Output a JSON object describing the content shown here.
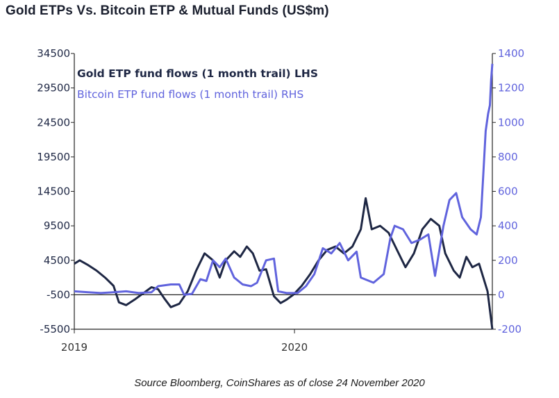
{
  "source_note": "Source Bloomberg, CoinShares as of close 24 November 2020",
  "colors": {
    "gold": "#1e2744",
    "bitcoin": "#6063dd",
    "axis": "#222222"
  },
  "chart_data": {
    "type": "line",
    "title": "Gold ETPs Vs. Bitcoin ETP & Mutual Funds (US$m)",
    "left_axis": {
      "ylim": [
        -5500,
        34500
      ],
      "ticks": [
        -5500,
        -500,
        4500,
        9500,
        14500,
        19500,
        24500,
        29500,
        34500
      ],
      "tick_labels": [
        "-5500",
        "-500",
        "4500",
        "9500",
        "14500",
        "19500",
        "24500",
        "29500",
        "34500"
      ]
    },
    "right_axis": {
      "ylim": [
        -200,
        1400
      ],
      "ticks": [
        -200,
        0,
        200,
        400,
        600,
        800,
        1000,
        1200,
        1400
      ],
      "tick_labels": [
        "-200",
        "0",
        "200",
        "400",
        "600",
        "800",
        "1000",
        "1200",
        "1400"
      ]
    },
    "x_axis": {
      "range": [
        "2019-01-01",
        "2020-11-24"
      ],
      "tick_labels": [
        {
          "label": "2019",
          "date": "2019-01-01"
        },
        {
          "label": "2020",
          "date": "2020-01-01"
        }
      ]
    },
    "legend": {
      "placement": "top-left"
    },
    "series": [
      {
        "name": "Gold ETP fund flows (1 month trail) LHS",
        "axis": "left",
        "points": [
          [
            "2019-01-01",
            4000
          ],
          [
            "2019-01-10",
            4500
          ],
          [
            "2019-01-24",
            3800
          ],
          [
            "2019-02-07",
            3000
          ],
          [
            "2019-02-21",
            2000
          ],
          [
            "2019-03-07",
            800
          ],
          [
            "2019-03-16",
            -1600
          ],
          [
            "2019-03-28",
            -2000
          ],
          [
            "2019-04-11",
            -1200
          ],
          [
            "2019-04-25",
            -300
          ],
          [
            "2019-05-09",
            600
          ],
          [
            "2019-05-20",
            300
          ],
          [
            "2019-05-30",
            -1000
          ],
          [
            "2019-06-10",
            -2300
          ],
          [
            "2019-06-24",
            -1800
          ],
          [
            "2019-07-08",
            0
          ],
          [
            "2019-07-22",
            3000
          ],
          [
            "2019-08-05",
            5500
          ],
          [
            "2019-08-19",
            4500
          ],
          [
            "2019-08-30",
            2000
          ],
          [
            "2019-09-09",
            4500
          ],
          [
            "2019-09-23",
            5800
          ],
          [
            "2019-10-03",
            5000
          ],
          [
            "2019-10-14",
            6500
          ],
          [
            "2019-10-24",
            5500
          ],
          [
            "2019-11-04",
            3000
          ],
          [
            "2019-11-15",
            3200
          ],
          [
            "2019-11-28",
            -700
          ],
          [
            "2019-12-09",
            -1700
          ],
          [
            "2019-12-19",
            -1200
          ],
          [
            "2019-12-30",
            -500
          ],
          [
            "2020-01-13",
            800
          ],
          [
            "2020-01-27",
            2500
          ],
          [
            "2020-02-10",
            4500
          ],
          [
            "2020-02-24",
            6000
          ],
          [
            "2020-03-09",
            6500
          ],
          [
            "2020-03-23",
            5500
          ],
          [
            "2020-04-06",
            6500
          ],
          [
            "2020-04-20",
            9000
          ],
          [
            "2020-04-28",
            13500
          ],
          [
            "2020-05-08",
            9000
          ],
          [
            "2020-05-22",
            9500
          ],
          [
            "2020-06-05",
            8500
          ],
          [
            "2020-06-19",
            6000
          ],
          [
            "2020-07-03",
            3500
          ],
          [
            "2020-07-17",
            5500
          ],
          [
            "2020-07-31",
            9000
          ],
          [
            "2020-08-14",
            10500
          ],
          [
            "2020-08-28",
            9500
          ],
          [
            "2020-09-07",
            5500
          ],
          [
            "2020-09-21",
            3000
          ],
          [
            "2020-10-01",
            2000
          ],
          [
            "2020-10-12",
            5000
          ],
          [
            "2020-10-22",
            3500
          ],
          [
            "2020-11-02",
            4000
          ],
          [
            "2020-11-09",
            2000
          ],
          [
            "2020-11-16",
            0
          ],
          [
            "2020-11-24",
            -5500
          ]
        ]
      },
      {
        "name": "Bitcoin ETP fund flows (1 month trail) RHS",
        "axis": "right",
        "points": [
          [
            "2019-01-01",
            20
          ],
          [
            "2019-01-24",
            15
          ],
          [
            "2019-02-14",
            10
          ],
          [
            "2019-03-07",
            15
          ],
          [
            "2019-03-28",
            20
          ],
          [
            "2019-04-18",
            10
          ],
          [
            "2019-05-09",
            15
          ],
          [
            "2019-05-20",
            50
          ],
          [
            "2019-06-10",
            60
          ],
          [
            "2019-06-24",
            60
          ],
          [
            "2019-07-02",
            0
          ],
          [
            "2019-07-15",
            5
          ],
          [
            "2019-07-29",
            90
          ],
          [
            "2019-08-08",
            80
          ],
          [
            "2019-08-19",
            200
          ],
          [
            "2019-08-30",
            160
          ],
          [
            "2019-09-09",
            210
          ],
          [
            "2019-09-23",
            100
          ],
          [
            "2019-10-07",
            60
          ],
          [
            "2019-10-21",
            50
          ],
          [
            "2019-10-31",
            70
          ],
          [
            "2019-11-15",
            200
          ],
          [
            "2019-11-28",
            210
          ],
          [
            "2019-12-05",
            20
          ],
          [
            "2019-12-19",
            10
          ],
          [
            "2020-01-06",
            10
          ],
          [
            "2020-01-20",
            50
          ],
          [
            "2020-02-03",
            120
          ],
          [
            "2020-02-17",
            270
          ],
          [
            "2020-03-02",
            240
          ],
          [
            "2020-03-16",
            300
          ],
          [
            "2020-03-30",
            200
          ],
          [
            "2020-04-13",
            250
          ],
          [
            "2020-04-20",
            100
          ],
          [
            "2020-05-11",
            70
          ],
          [
            "2020-05-28",
            120
          ],
          [
            "2020-06-08",
            330
          ],
          [
            "2020-06-15",
            400
          ],
          [
            "2020-06-29",
            380
          ],
          [
            "2020-07-13",
            300
          ],
          [
            "2020-07-27",
            320
          ],
          [
            "2020-08-10",
            350
          ],
          [
            "2020-08-21",
            110
          ],
          [
            "2020-09-04",
            400
          ],
          [
            "2020-09-14",
            550
          ],
          [
            "2020-09-25",
            590
          ],
          [
            "2020-10-05",
            450
          ],
          [
            "2020-10-19",
            380
          ],
          [
            "2020-10-29",
            350
          ],
          [
            "2020-11-05",
            450
          ],
          [
            "2020-11-09",
            700
          ],
          [
            "2020-11-13",
            950
          ],
          [
            "2020-11-17",
            1050
          ],
          [
            "2020-11-20",
            1100
          ],
          [
            "2020-11-22",
            1250
          ],
          [
            "2020-11-24",
            1340
          ]
        ]
      }
    ]
  }
}
